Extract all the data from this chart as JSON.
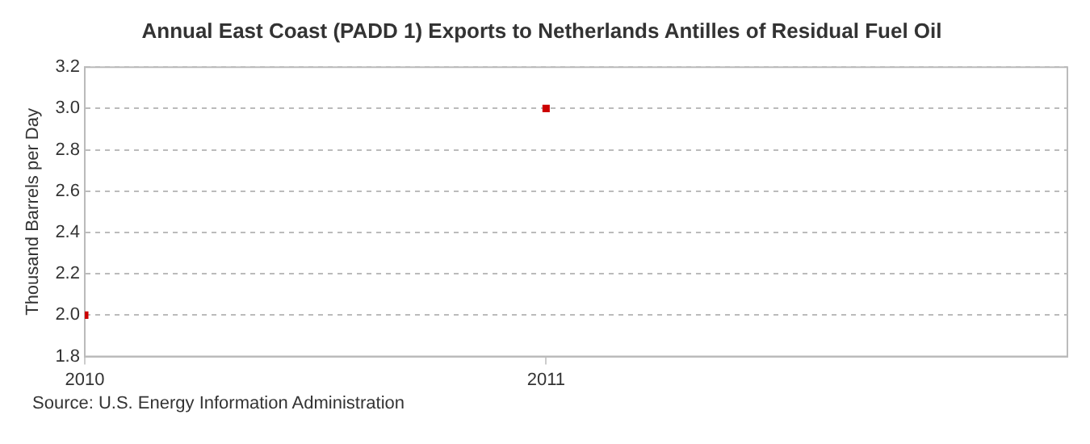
{
  "chart_data": {
    "type": "scatter",
    "title": "Annual East Coast (PADD 1) Exports to Netherlands Antilles of Residual Fuel Oil",
    "ylabel": "Thousand Barrels per Day",
    "x": [
      2010,
      2011
    ],
    "series": [
      {
        "color": "#cc0000",
        "values": [
          2.0,
          3.0
        ]
      }
    ],
    "xlim": [
      2010,
      2012.13
    ],
    "xticks": [
      2010,
      2011
    ],
    "ylim": [
      1.8,
      3.2
    ],
    "yticks": [
      1.8,
      {
        "value": 2,
        "label": "2.0"
      },
      2.2,
      2.4,
      2.6,
      2.8,
      {
        "value": 3,
        "label": "3.0"
      },
      3.2
    ],
    "grid": "y",
    "legend": false,
    "marker": "square",
    "annotations": [
      "Source: U.S. Energy Information Administration"
    ]
  }
}
